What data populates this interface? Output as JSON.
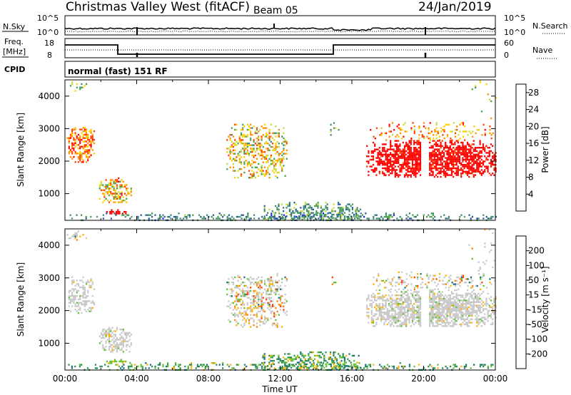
{
  "header": {
    "title": "Christmas Valley West (fitACF)",
    "beam": "Beam 05",
    "date": "24/Jan/2019",
    "mode": "normal (fast) 151 RF"
  },
  "aux_panels": {
    "nsky_label": "N.Sky",
    "nsearch_label": "N.Search",
    "freq_label_1": "Freq.",
    "freq_label_2": "[MHz]",
    "nave_label": "Nave",
    "cpid_label": "CPID",
    "noise_ticks_left": [
      "10^5",
      "10^0"
    ],
    "noise_ticks_right": [
      "10^5",
      "10^0"
    ],
    "freq_ticks": [
      "18",
      "8"
    ],
    "nave_ticks": [
      "60",
      "0"
    ]
  },
  "chart_data": [
    {
      "type": "heatmap",
      "panel": "power",
      "ylabel": "Slant Range [km]",
      "xlabel": "Time UT",
      "x_ticks": [
        "00:00",
        "04:00",
        "08:00",
        "12:00",
        "16:00",
        "20:00",
        "00:00"
      ],
      "xlim_hours": [
        0,
        24
      ],
      "ylim_km": [
        180,
        4500
      ],
      "y_ticks": [
        1000,
        2000,
        3000,
        4000
      ],
      "colorbar": {
        "label": "Power [dB]",
        "ticks": [
          4,
          8,
          12,
          16,
          20,
          24,
          28
        ],
        "range": [
          0,
          30
        ],
        "colors": [
          "#1f1fff",
          "#2a5aa0",
          "#3a8a7a",
          "#4aa050",
          "#c8d840",
          "#ffd000",
          "#ff9000",
          "#ff4000",
          "#ff0000"
        ]
      },
      "scatter_regions": [
        {
          "t": [
            0.1,
            1.5
          ],
          "r": [
            2000,
            3000
          ],
          "level": "20-28 dB"
        },
        {
          "t": [
            2.0,
            3.5
          ],
          "r": [
            800,
            1500
          ],
          "level": "12-28 dB"
        },
        {
          "t": [
            9.0,
            12.3
          ],
          "r": [
            1500,
            3100
          ],
          "level": "8-24 dB"
        },
        {
          "t": [
            16.8,
            24.0
          ],
          "r": [
            1500,
            2800
          ],
          "level": "24-30 dB"
        },
        {
          "t": [
            0,
            24
          ],
          "r": [
            180,
            600
          ],
          "level": "4-12 dB"
        }
      ]
    },
    {
      "type": "heatmap",
      "panel": "velocity",
      "ylabel": "Slant Range [km]",
      "xlabel": "Time UT",
      "x_ticks": [
        "00:00",
        "04:00",
        "08:00",
        "12:00",
        "16:00",
        "20:00",
        "00:00"
      ],
      "xlim_hours": [
        0,
        24
      ],
      "ylim_km": [
        180,
        4500
      ],
      "y_ticks": [
        1000,
        2000,
        3000,
        4000
      ],
      "colorbar": {
        "label": "Velocity [m s⁻¹]",
        "ticks": [
          "200",
          "100",
          "50",
          "15",
          "-15",
          "-50",
          "-100",
          "-200"
        ],
        "range": [
          -250,
          250
        ],
        "colors": [
          "#1020c0",
          "#1a7080",
          "#2a9050",
          "#60c030",
          "#c8c8c8",
          "#ffb000",
          "#ff8000",
          "#ff4000",
          "#ff0000"
        ]
      },
      "scatter_regions": [
        {
          "t": [
            0.1,
            1.5
          ],
          "r": [
            2000,
            3000
          ],
          "level": "ground scatter"
        },
        {
          "t": [
            2.0,
            3.5
          ],
          "r": [
            800,
            1500
          ],
          "level": "ground scatter"
        },
        {
          "t": [
            9.0,
            12.3
          ],
          "r": [
            1500,
            3100
          ],
          "level": "mixed"
        },
        {
          "t": [
            16.8,
            24.0
          ],
          "r": [
            1500,
            2800
          ],
          "level": "ground scatter"
        },
        {
          "t": [
            0,
            24
          ],
          "r": [
            180,
            600
          ],
          "level": "15-100 m/s"
        }
      ]
    }
  ]
}
